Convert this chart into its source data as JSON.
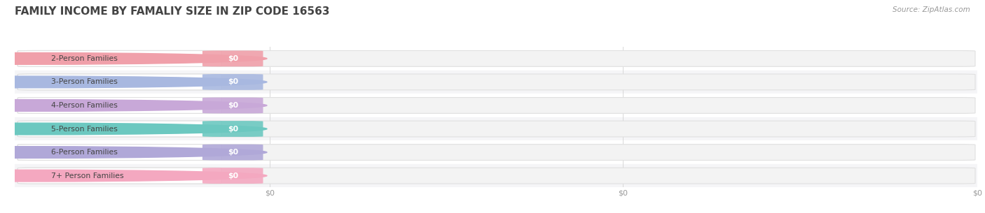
{
  "title": "FAMILY INCOME BY FAMALIY SIZE IN ZIP CODE 16563",
  "source": "Source: ZipAtlas.com",
  "categories": [
    "2-Person Families",
    "3-Person Families",
    "4-Person Families",
    "5-Person Families",
    "6-Person Families",
    "7+ Person Families"
  ],
  "values": [
    0,
    0,
    0,
    0,
    0,
    0
  ],
  "bar_colors": [
    "#f0a0aa",
    "#a8b8e0",
    "#c8a8d8",
    "#6cc8c0",
    "#b0a8d8",
    "#f4a8c0"
  ],
  "row_bg_colors": [
    "#ffffff",
    "#f5f5f7"
  ],
  "label_color": "#444444",
  "title_color": "#444444",
  "source_color": "#999999",
  "xlim": [
    0,
    1
  ],
  "figsize": [
    14.06,
    3.05
  ],
  "dpi": 100
}
